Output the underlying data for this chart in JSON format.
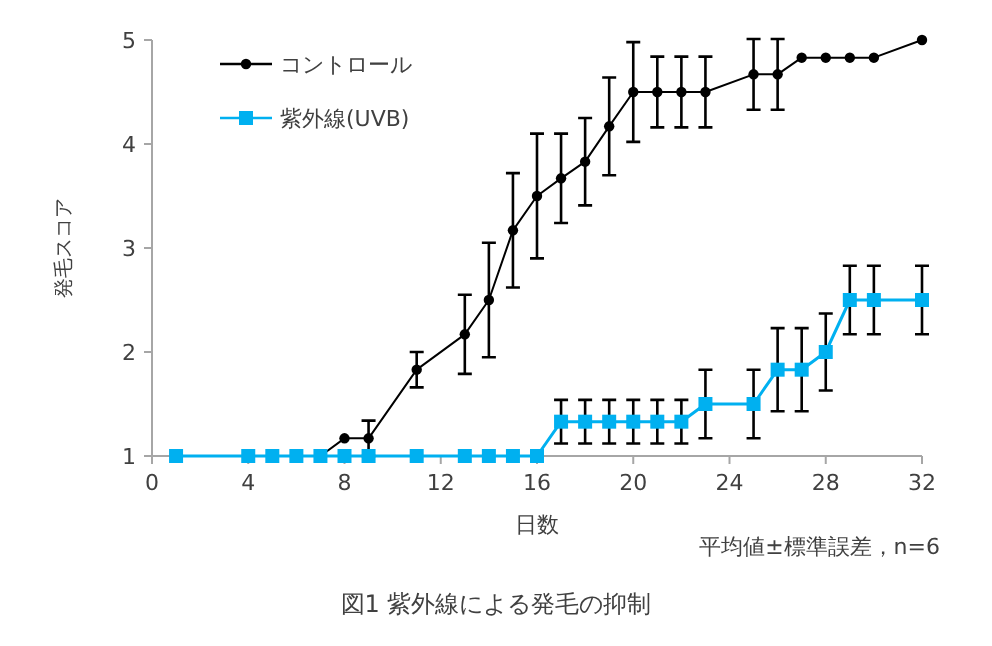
{
  "chart_data": {
    "type": "line",
    "title": "図1 紫外線による発毛の抑制",
    "xlabel": "日数",
    "ylabel": "発毛スコア",
    "annotations": [
      "平均値±標準誤差，n=6"
    ],
    "xlim": [
      0,
      32
    ],
    "xticks": [
      0,
      4,
      8,
      12,
      16,
      20,
      24,
      28,
      32
    ],
    "ylim": [
      1,
      5
    ],
    "yticks": [
      1,
      2,
      3,
      4,
      5
    ],
    "grid": false,
    "legend": "top left",
    "line_style": "solid",
    "series": [
      {
        "name": "コントロール",
        "color": "#000000",
        "marker": "circle",
        "x": [
          7,
          8,
          9,
          11,
          13,
          14,
          15,
          16,
          17,
          18,
          19,
          20,
          21,
          22,
          23,
          25,
          26,
          27,
          28,
          29,
          30,
          32
        ],
        "values": [
          1,
          1.17,
          1.17,
          1.83,
          2.17,
          2.5,
          3.17,
          3.5,
          3.67,
          3.83,
          4.17,
          4.5,
          4.5,
          4.5,
          4.5,
          4.67,
          4.67,
          4.83,
          4.83,
          4.83,
          4.83,
          5
        ],
        "errors": [
          null,
          null,
          0.17,
          0.17,
          0.38,
          0.55,
          0.55,
          0.6,
          0.43,
          0.42,
          0.47,
          0.48,
          0.34,
          0.34,
          0.34,
          0.34,
          0.34,
          null,
          null,
          null,
          null,
          null
        ]
      },
      {
        "name": "紫外線(UVB)",
        "color": "#00b0f0",
        "marker": "square",
        "x": [
          1,
          4,
          5,
          6,
          7,
          8,
          9,
          11,
          13,
          14,
          15,
          16,
          17,
          18,
          19,
          20,
          21,
          22,
          23,
          25,
          26,
          27,
          28,
          29,
          30,
          32
        ],
        "values": [
          1,
          1,
          1,
          1,
          1,
          1,
          1,
          1,
          1,
          1,
          1,
          1,
          1.33,
          1.33,
          1.33,
          1.33,
          1.33,
          1.33,
          1.5,
          1.5,
          1.83,
          1.83,
          2,
          2.5,
          2.5,
          2.5
        ],
        "errors": [
          null,
          null,
          null,
          null,
          null,
          null,
          null,
          null,
          null,
          null,
          null,
          null,
          0.21,
          0.21,
          0.21,
          0.21,
          0.21,
          0.21,
          0.33,
          0.33,
          0.4,
          0.4,
          0.37,
          0.33,
          0.33,
          0.33
        ]
      }
    ]
  }
}
